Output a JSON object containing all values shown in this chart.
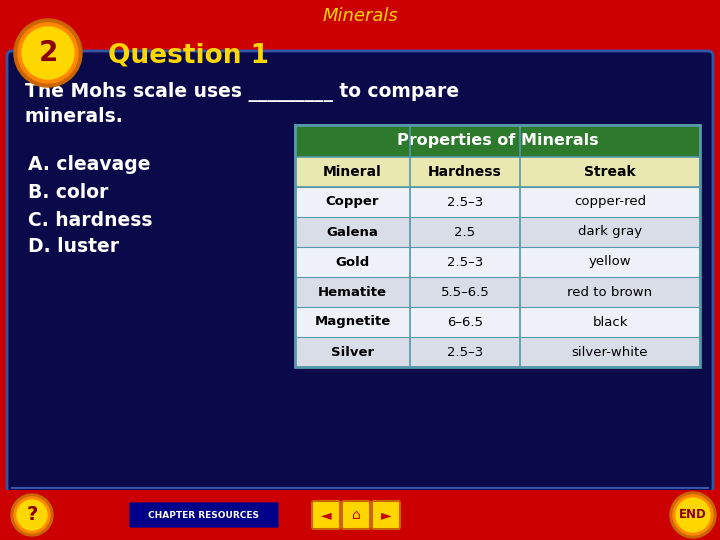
{
  "title": "Minerals",
  "title_color": "#FFD700",
  "bg_outer": "#CC0000",
  "bg_inner": "#0a0a4a",
  "inner_border_color": "#3355aa",
  "number": "2",
  "question_label": "Question 1",
  "question_label_color": "#FFD700",
  "question_text_line1": "The Mohs scale uses _________ to compare",
  "question_text_line2": "minerals.",
  "question_text_color": "#FFFFFF",
  "choices": [
    "A. cleavage",
    "B. color",
    "C. hardness",
    "D. luster"
  ],
  "choices_color": "#FFFFFF",
  "table_title": "Properties of Minerals",
  "table_title_bg": "#2d7a2d",
  "table_title_color": "#FFFFFF",
  "table_header": [
    "Mineral",
    "Hardness",
    "Streak"
  ],
  "table_header_bg": "#e8e8b0",
  "table_header_color": "#000000",
  "table_rows": [
    [
      "Copper",
      "2.5–3",
      "copper-red"
    ],
    [
      "Galena",
      "2.5",
      "dark gray"
    ],
    [
      "Gold",
      "2.5–3",
      "yellow"
    ],
    [
      "Hematite",
      "5.5–6.5",
      "red to brown"
    ],
    [
      "Magnetite",
      "6–6.5",
      "black"
    ],
    [
      "Silver",
      "2.5–3",
      "silver-white"
    ]
  ],
  "table_row_colors": [
    "#eef2f8",
    "#d8dde8"
  ],
  "table_border_color": "#5599aa",
  "footer_bg": "#CC0000",
  "nav_color": "#FFD700"
}
